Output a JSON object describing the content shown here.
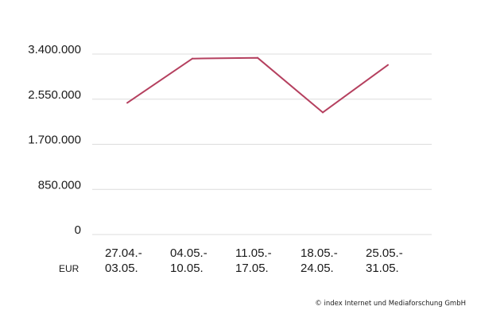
{
  "chart_data": {
    "type": "line",
    "categories": [
      [
        "27.04.-",
        "03.05."
      ],
      [
        "04.05.-",
        "10.05."
      ],
      [
        "11.05.-",
        "17.05."
      ],
      [
        "18.05.-",
        "24.05."
      ],
      [
        "25.05.-",
        "31.05."
      ]
    ],
    "series": [
      {
        "values": [
          2480000,
          3315000,
          3330000,
          2300000,
          3195000
        ]
      }
    ],
    "yticks": [
      0,
      850000,
      1700000,
      2550000,
      3400000
    ],
    "ytick_labels": [
      "0",
      "850.000",
      "1.700.000",
      "2.550.000",
      "3.400.000"
    ],
    "ylim": [
      0,
      3400000
    ],
    "unit_label": "EUR",
    "grid": true,
    "line_color": "#b5405f"
  },
  "credit": "© index Internet und Mediaforschung GmbH"
}
